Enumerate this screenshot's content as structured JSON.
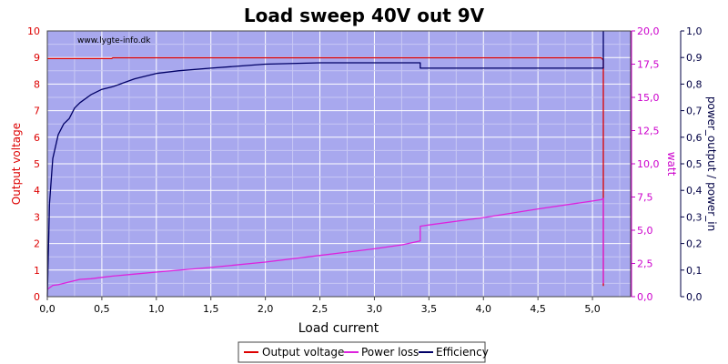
{
  "chart_data": {
    "type": "line",
    "title": "Load sweep 40V out 9V",
    "watermark": "www.lygte-info.dk",
    "xlabel": "Load current",
    "xlim": [
      0,
      5.35
    ],
    "xticks": [
      "0,0",
      "0,5",
      "1,0",
      "1,5",
      "2,0",
      "2,5",
      "3,0",
      "3,5",
      "4,0",
      "4,5",
      "5,0"
    ],
    "xtick_values": [
      0,
      0.5,
      1.0,
      1.5,
      2.0,
      2.5,
      3.0,
      3.5,
      4.0,
      4.5,
      5.0
    ],
    "y_left": {
      "label": "Output voltage",
      "lim": [
        0,
        10
      ],
      "ticks": [
        "0",
        "1",
        "2",
        "3",
        "4",
        "5",
        "6",
        "7",
        "8",
        "9",
        "10"
      ],
      "color": "#dd0000"
    },
    "y_mid": {
      "label": "watt",
      "lim": [
        0,
        20
      ],
      "ticks": [
        "0,0",
        "2,5",
        "5,0",
        "7,5",
        "10,0",
        "12,5",
        "15,0",
        "17,5",
        "20,0"
      ],
      "color": "#cc00cc"
    },
    "y_right": {
      "label": "power_output / power_in",
      "lim": [
        0,
        1
      ],
      "ticks": [
        "0,0",
        "0,1",
        "0,2",
        "0,3",
        "0,4",
        "0,5",
        "0,6",
        "0,7",
        "0,8",
        "0,9",
        "1,0"
      ],
      "color": "#000044"
    },
    "plot_bg": "#a8a8ee",
    "grid": true,
    "legend_position": "bottom-center",
    "series": [
      {
        "name": "Output voltage",
        "color": "#dd0000",
        "axis": "left",
        "x": [
          0.0,
          0.59,
          0.6,
          5.08,
          5.1,
          5.1
        ],
        "y": [
          8.96,
          8.96,
          8.99,
          8.99,
          8.9,
          0.4
        ]
      },
      {
        "name": "Power loss",
        "color": "#dd22dd",
        "axis": "mid",
        "x": [
          0.0,
          0.05,
          0.1,
          0.2,
          0.3,
          0.4,
          0.5,
          0.6,
          0.8,
          1.0,
          1.5,
          2.0,
          2.5,
          3.0,
          3.25,
          3.42,
          3.42,
          3.5,
          4.0,
          4.5,
          5.0,
          5.08,
          5.1,
          5.1
        ],
        "y": [
          0.55,
          0.85,
          0.9,
          1.1,
          1.3,
          1.35,
          1.45,
          1.55,
          1.7,
          1.85,
          2.2,
          2.6,
          3.1,
          3.6,
          3.9,
          4.2,
          5.3,
          5.4,
          5.95,
          6.6,
          7.2,
          7.3,
          7.4,
          1.0
        ]
      },
      {
        "name": "Efficiency",
        "color": "#000066",
        "axis": "right",
        "x": [
          0.0,
          0.02,
          0.05,
          0.1,
          0.15,
          0.2,
          0.25,
          0.3,
          0.4,
          0.5,
          0.6,
          0.8,
          1.0,
          1.2,
          1.5,
          2.0,
          2.5,
          3.0,
          3.42,
          3.42,
          3.5,
          4.0,
          4.5,
          5.08,
          5.1,
          5.1
        ],
        "y": [
          0.0,
          0.35,
          0.52,
          0.61,
          0.65,
          0.67,
          0.71,
          0.73,
          0.76,
          0.78,
          0.79,
          0.82,
          0.84,
          0.85,
          0.86,
          0.875,
          0.88,
          0.88,
          0.88,
          0.86,
          0.86,
          0.86,
          0.86,
          0.86,
          0.86,
          1.0
        ]
      }
    ]
  }
}
